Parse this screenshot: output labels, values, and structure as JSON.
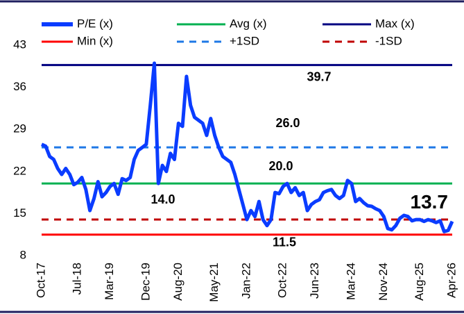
{
  "chart_data": {
    "type": "line",
    "categories": [
      "Oct-17",
      null,
      null,
      null,
      null,
      null,
      null,
      null,
      null,
      "Jul-18",
      null,
      null,
      null,
      null,
      null,
      null,
      null,
      "Mar-19",
      null,
      null,
      null,
      null,
      null,
      null,
      null,
      null,
      "Dec-19",
      null,
      null,
      null,
      null,
      null,
      null,
      null,
      "Aug-20",
      null,
      null,
      null,
      null,
      null,
      null,
      null,
      null,
      "May-21",
      null,
      null,
      null,
      null,
      null,
      null,
      null,
      "Jan-22",
      null,
      null,
      null,
      null,
      null,
      null,
      null,
      null,
      "Oct-22",
      null,
      null,
      null,
      null,
      null,
      null,
      null,
      "Jun-23",
      null,
      null,
      null,
      null,
      null,
      null,
      null,
      null,
      "Mar-24",
      null,
      null,
      null,
      null,
      null,
      null,
      null,
      "Nov-24",
      null,
      null,
      null,
      null,
      null,
      null,
      null,
      null,
      "Aug-25",
      null,
      null,
      null,
      null,
      null,
      null,
      null,
      "Apr-26"
    ],
    "series": [
      {
        "name": "P/E (x)",
        "color": "#0a3cff",
        "values": [
          26.5,
          26.2,
          24.5,
          24,
          22.5,
          21.5,
          22.5,
          21.5,
          19.8,
          20.2,
          21,
          19,
          15.5,
          17.5,
          20.3,
          17.8,
          18.5,
          19.5,
          20,
          18.2,
          20.8,
          20.5,
          21,
          24,
          25.5,
          26,
          26.5,
          33,
          40,
          20,
          23,
          22,
          25,
          24,
          30,
          29.5,
          37.8,
          33,
          31,
          30.5,
          30,
          28,
          30.8,
          28,
          26,
          24.5,
          24,
          23.5,
          21.5,
          19,
          16.5,
          14,
          15.5,
          14.5,
          17,
          14,
          13,
          14,
          18.5,
          18.3,
          19.5,
          20,
          18.5,
          19.3,
          18,
          18.5,
          15.5,
          16.5,
          17,
          17.3,
          18.5,
          18.8,
          19,
          18,
          17.5,
          18,
          20.5,
          20,
          17,
          17.5,
          16.8,
          16.3,
          16.2,
          15.8,
          15.5,
          14.5,
          12.5,
          12.3,
          13,
          14.2,
          14.7,
          14.5,
          13.8,
          14,
          14,
          13.7,
          14,
          13.8,
          13.5,
          13.8,
          12,
          12.2,
          13.7
        ]
      }
    ],
    "lines": [
      {
        "name": "Avg (x)",
        "color": "#00b050",
        "dash": false,
        "value": 20,
        "value_label": "20.0"
      },
      {
        "name": "Max (x)",
        "color": "#000080",
        "dash": false,
        "value": 39.7,
        "value_label": "39.7"
      },
      {
        "name": "Min (x)",
        "color": "#ff0000",
        "dash": false,
        "value": 11.5,
        "value_label": "11.5"
      },
      {
        "name": "+1SD",
        "color": "#1e78e6",
        "dash": true,
        "value": 26,
        "value_label": "26.0"
      },
      {
        "name": "-1SD",
        "color": "#c00000",
        "dash": true,
        "value": 14,
        "value_label": "14.0"
      }
    ],
    "ylim": [
      8,
      43
    ],
    "yticks": [
      8,
      15,
      22,
      29,
      36,
      43
    ]
  }
}
